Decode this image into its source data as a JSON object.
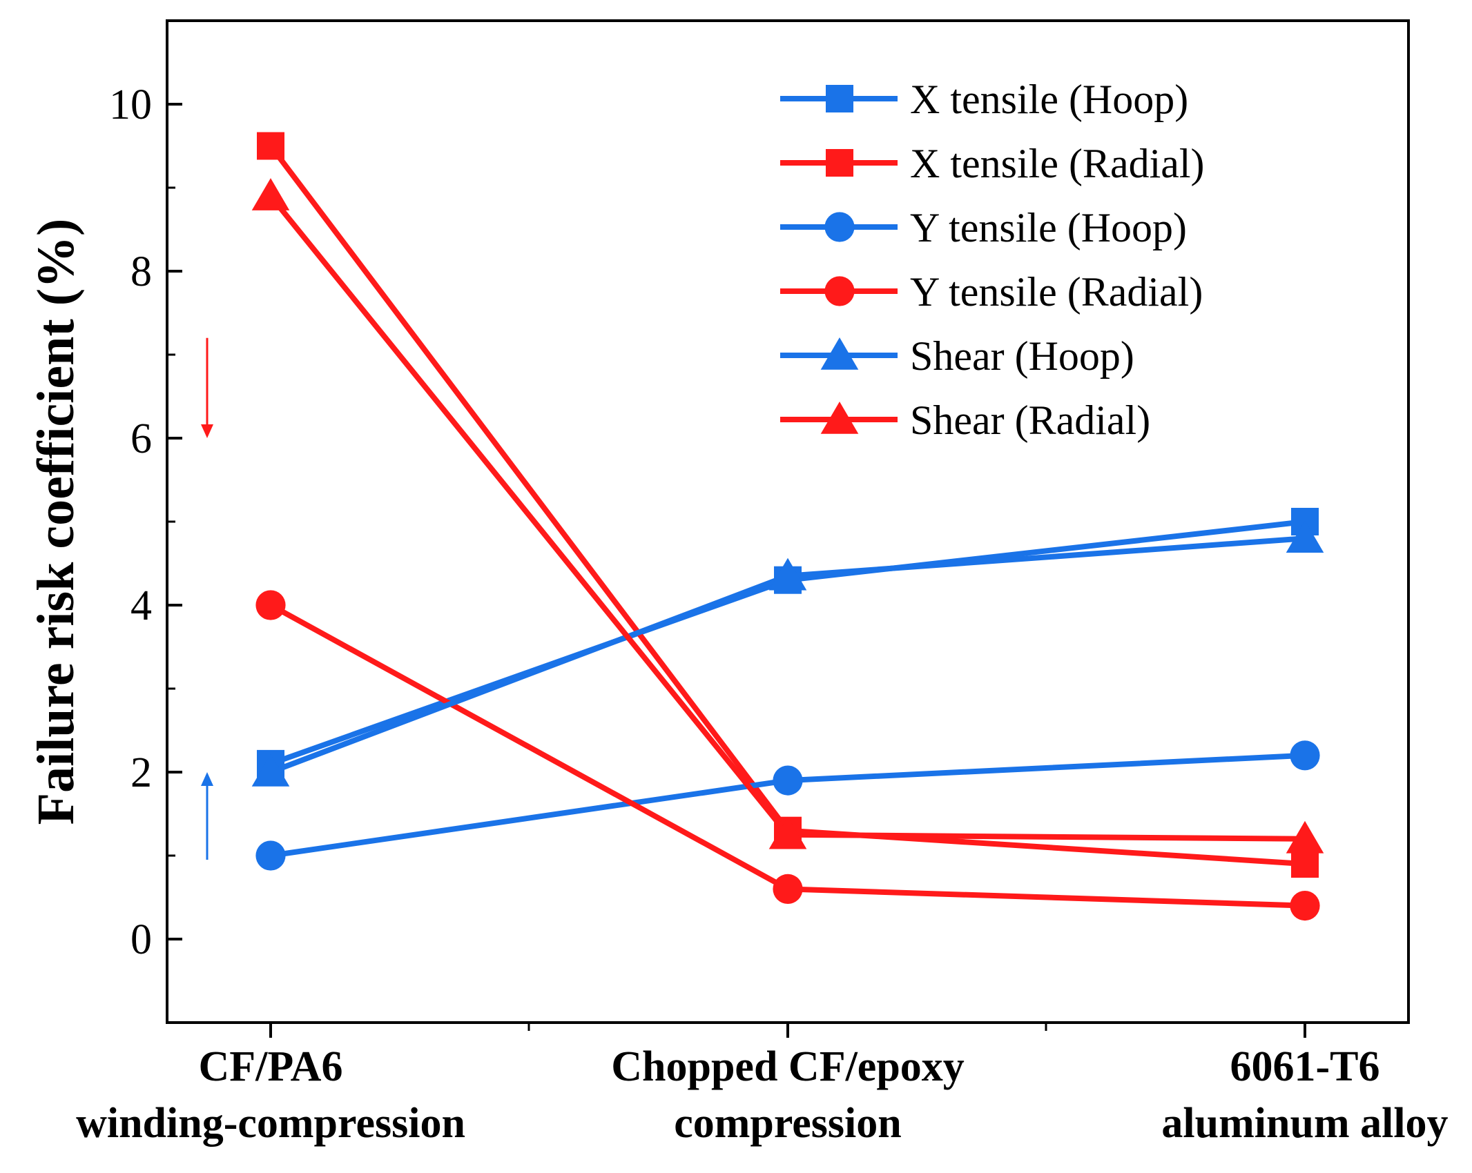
{
  "chart_data": {
    "type": "line",
    "title": "",
    "xlabel": "",
    "ylabel": "Failure risk coefficient (%)",
    "ylim": [
      -1,
      11
    ],
    "yticks": [
      0,
      2,
      4,
      6,
      8,
      10
    ],
    "grid": false,
    "legend_position": "top-right",
    "categories": [
      [
        "CF/PA6",
        "winding-compression"
      ],
      [
        "Chopped CF/epoxy",
        "compression"
      ],
      [
        "6061-T6",
        "aluminum alloy"
      ]
    ],
    "series": [
      {
        "name": "X tensile (Hoop)",
        "color": "#1a73e8",
        "marker": "square",
        "values": [
          2.1,
          4.3,
          5.0
        ]
      },
      {
        "name": "X tensile (Radial)",
        "color": "#ff1a1a",
        "marker": "square",
        "values": [
          9.5,
          1.3,
          0.9
        ]
      },
      {
        "name": "Y tensile (Hoop)",
        "color": "#1a73e8",
        "marker": "circle",
        "values": [
          1.0,
          1.9,
          2.2
        ]
      },
      {
        "name": "Y tensile (Radial)",
        "color": "#ff1a1a",
        "marker": "circle",
        "values": [
          4.0,
          0.6,
          0.4
        ]
      },
      {
        "name": "Shear (Hoop)",
        "color": "#1a73e8",
        "marker": "triangle",
        "values": [
          2.0,
          4.35,
          4.8
        ]
      },
      {
        "name": "Shear (Radial)",
        "color": "#ff1a1a",
        "marker": "triangle",
        "values": [
          8.9,
          1.25,
          1.2
        ]
      }
    ],
    "annotations": [
      {
        "type": "arrow",
        "direction": "down",
        "color": "#ff1a1a",
        "from": 7.2,
        "to": 6.0
      },
      {
        "type": "arrow",
        "direction": "up",
        "color": "#1a73e8",
        "from": 0.95,
        "to": 2.0
      }
    ]
  }
}
